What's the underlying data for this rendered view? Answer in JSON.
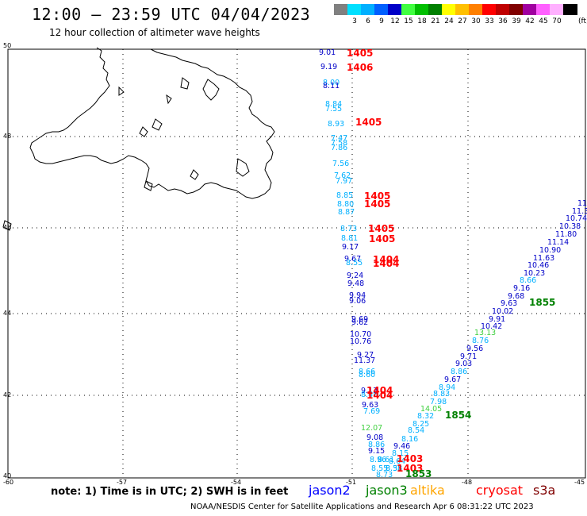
{
  "header": {
    "title": "12:00 – 23:59 UTC 04/04/2023",
    "subtitle": "12 hour collection of altimeter wave heights"
  },
  "legend": {
    "unit": "(ft)",
    "swatches": [
      {
        "color": "#808080",
        "label": ""
      },
      {
        "color": "#00e0ff",
        "label": "3"
      },
      {
        "color": "#00b0ff",
        "label": "6"
      },
      {
        "color": "#0060ff",
        "label": "9"
      },
      {
        "color": "#0000c8",
        "label": "12"
      },
      {
        "color": "#40ff40",
        "label": "15"
      },
      {
        "color": "#00c000",
        "label": "18"
      },
      {
        "color": "#008000",
        "label": "21"
      },
      {
        "color": "#ffff00",
        "label": "24"
      },
      {
        "color": "#ffc000",
        "label": "27"
      },
      {
        "color": "#ff8000",
        "label": "30"
      },
      {
        "color": "#ff0000",
        "label": "33"
      },
      {
        "color": "#c00000",
        "label": "36"
      },
      {
        "color": "#800000",
        "label": "39"
      },
      {
        "color": "#a000a0",
        "label": "42"
      },
      {
        "color": "#ff60ff",
        "label": "45"
      },
      {
        "color": "#ffb0ff",
        "label": "70"
      },
      {
        "color": "#000000",
        "label": ""
      }
    ]
  },
  "axes": {
    "lat_labels": [
      "50",
      "48",
      "46",
      "44",
      "42",
      "40"
    ],
    "lon_labels": [
      "-60",
      "-57",
      "-54",
      "-51",
      "-48",
      "-45"
    ]
  },
  "footer": {
    "note": "note:  1) Time is in UTC;  2) SWH is in feet",
    "satellites": [
      {
        "name": "jason2",
        "color": "#0000ff"
      },
      {
        "name": "jason3",
        "color": "#008000"
      },
      {
        "name": "altika",
        "color": "#ffa500"
      },
      {
        "name": "cryosat",
        "color": "#ff0000"
      },
      {
        "name": "s3a",
        "color": "#800000"
      }
    ],
    "credit": "NOAA/NESDIS Center for Satellite Applications and Research    Apr  6 08:31:22 UTC 2023"
  },
  "observations": [
    {
      "v": "9.01",
      "c": "#0000c8"
    },
    {
      "v": "9.19",
      "c": "#0000c8"
    },
    {
      "v": "8.00",
      "c": "#00b0ff"
    },
    {
      "v": "8.11",
      "c": "#0000c8"
    },
    {
      "v": "8.84",
      "c": "#00b0ff"
    },
    {
      "v": "7.55",
      "c": "#00b0ff"
    },
    {
      "v": "8.93",
      "c": "#00b0ff"
    },
    {
      "v": "7.47",
      "c": "#00b0ff"
    },
    {
      "v": "7.58",
      "c": "#00b0ff"
    },
    {
      "v": "7.86",
      "c": "#00b0ff"
    },
    {
      "v": "7.56",
      "c": "#00b0ff"
    },
    {
      "v": "7.62",
      "c": "#00b0ff"
    },
    {
      "v": "7.97",
      "c": "#00b0ff"
    },
    {
      "v": "8.85",
      "c": "#00b0ff"
    },
    {
      "v": "8.80",
      "c": "#00b0ff"
    },
    {
      "v": "8.87",
      "c": "#00b0ff"
    },
    {
      "v": "8.73",
      "c": "#00b0ff"
    },
    {
      "v": "8.81",
      "c": "#00b0ff"
    },
    {
      "v": "9.17",
      "c": "#0000c8"
    },
    {
      "v": "9.67",
      "c": "#0000c8"
    },
    {
      "v": "8.55",
      "c": "#00b0ff"
    },
    {
      "v": "9.24",
      "c": "#0000c8"
    },
    {
      "v": "9.48",
      "c": "#0000c8"
    },
    {
      "v": "9.94",
      "c": "#0000c8"
    },
    {
      "v": "9.06",
      "c": "#0000c8"
    },
    {
      "v": "9.69",
      "c": "#0000c8"
    },
    {
      "v": "9.62",
      "c": "#0000c8"
    },
    {
      "v": "10.70",
      "c": "#0000c8"
    },
    {
      "v": "10.76",
      "c": "#0000c8"
    },
    {
      "v": "9.27",
      "c": "#0000c8"
    },
    {
      "v": "11.37",
      "c": "#0000c8"
    },
    {
      "v": "8.66",
      "c": "#00b0ff"
    },
    {
      "v": "8.60",
      "c": "#00b0ff"
    },
    {
      "v": "9.13",
      "c": "#0000c8"
    },
    {
      "v": "8.48",
      "c": "#00b0ff"
    },
    {
      "v": "9.63",
      "c": "#0000c8"
    },
    {
      "v": "7.69",
      "c": "#00b0ff"
    },
    {
      "v": "12.07",
      "c": "#40d040"
    },
    {
      "v": "9.08",
      "c": "#0000c8"
    },
    {
      "v": "8.86",
      "c": "#00b0ff"
    },
    {
      "v": "9.15",
      "c": "#0000c8"
    },
    {
      "v": "8.96",
      "c": "#00b0ff"
    },
    {
      "v": "8.61",
      "c": "#00b0ff"
    },
    {
      "v": "8.55",
      "c": "#00b0ff"
    },
    {
      "v": "8.55",
      "c": "#00b0ff"
    },
    {
      "v": "8.73",
      "c": "#00b0ff"
    },
    {
      "v": "11",
      "c": "#0000c8"
    },
    {
      "v": "11.3",
      "c": "#0000c8"
    },
    {
      "v": "10.74",
      "c": "#0000c8"
    },
    {
      "v": "10.38",
      "c": "#0000c8"
    },
    {
      "v": "11.80",
      "c": "#0000c8"
    },
    {
      "v": "11.14",
      "c": "#0000c8"
    },
    {
      "v": "10.90",
      "c": "#0000c8"
    },
    {
      "v": "11.63",
      "c": "#0000c8"
    },
    {
      "v": "10.46",
      "c": "#0000c8"
    },
    {
      "v": "10.23",
      "c": "#0000c8"
    },
    {
      "v": "8.66",
      "c": "#00b0ff"
    },
    {
      "v": "9.16",
      "c": "#0000c8"
    },
    {
      "v": "9.68",
      "c": "#0000c8"
    },
    {
      "v": "9.63",
      "c": "#0000c8"
    },
    {
      "v": "10.02",
      "c": "#0000c8"
    },
    {
      "v": "9.91",
      "c": "#0000c8"
    },
    {
      "v": "10.42",
      "c": "#0000c8"
    },
    {
      "v": "13.13",
      "c": "#40d040"
    },
    {
      "v": "8.76",
      "c": "#00b0ff"
    },
    {
      "v": "9.56",
      "c": "#0000c8"
    },
    {
      "v": "9.71",
      "c": "#0000c8"
    },
    {
      "v": "9.03",
      "c": "#0000c8"
    },
    {
      "v": "8.86",
      "c": "#00b0ff"
    },
    {
      "v": "9.67",
      "c": "#0000c8"
    },
    {
      "v": "8.94",
      "c": "#00b0ff"
    },
    {
      "v": "8.83",
      "c": "#00b0ff"
    },
    {
      "v": "7.98",
      "c": "#00b0ff"
    },
    {
      "v": "14.05",
      "c": "#40d040"
    },
    {
      "v": "8.32",
      "c": "#00b0ff"
    },
    {
      "v": "8.25",
      "c": "#00b0ff"
    },
    {
      "v": "8.54",
      "c": "#00b0ff"
    },
    {
      "v": "8.16",
      "c": "#00b0ff"
    },
    {
      "v": "9.46",
      "c": "#0000c8"
    },
    {
      "v": "8.15",
      "c": "#00b0ff"
    },
    {
      "v": "8.64",
      "c": "#00b0ff"
    },
    {
      "v": "8.38",
      "c": "#00b0ff"
    }
  ],
  "track_labels": [
    {
      "v": "1405",
      "c": "#ff0000"
    },
    {
      "v": "1406",
      "c": "#ff0000"
    },
    {
      "v": "1405",
      "c": "#ff0000"
    },
    {
      "v": "1405",
      "c": "#ff0000"
    },
    {
      "v": "1405",
      "c": "#ff0000"
    },
    {
      "v": "1405",
      "c": "#ff0000"
    },
    {
      "v": "1405",
      "c": "#ff0000"
    },
    {
      "v": "1404",
      "c": "#ff0000"
    },
    {
      "v": "1404",
      "c": "#ff0000"
    },
    {
      "v": "1404",
      "c": "#ff0000"
    },
    {
      "v": "1404",
      "c": "#ff0000"
    },
    {
      "v": "1403",
      "c": "#ff0000"
    },
    {
      "v": "1403",
      "c": "#ff0000"
    },
    {
      "v": "1855",
      "c": "#008000"
    },
    {
      "v": "1854",
      "c": "#008000"
    },
    {
      "v": "1853",
      "c": "#008000"
    }
  ]
}
